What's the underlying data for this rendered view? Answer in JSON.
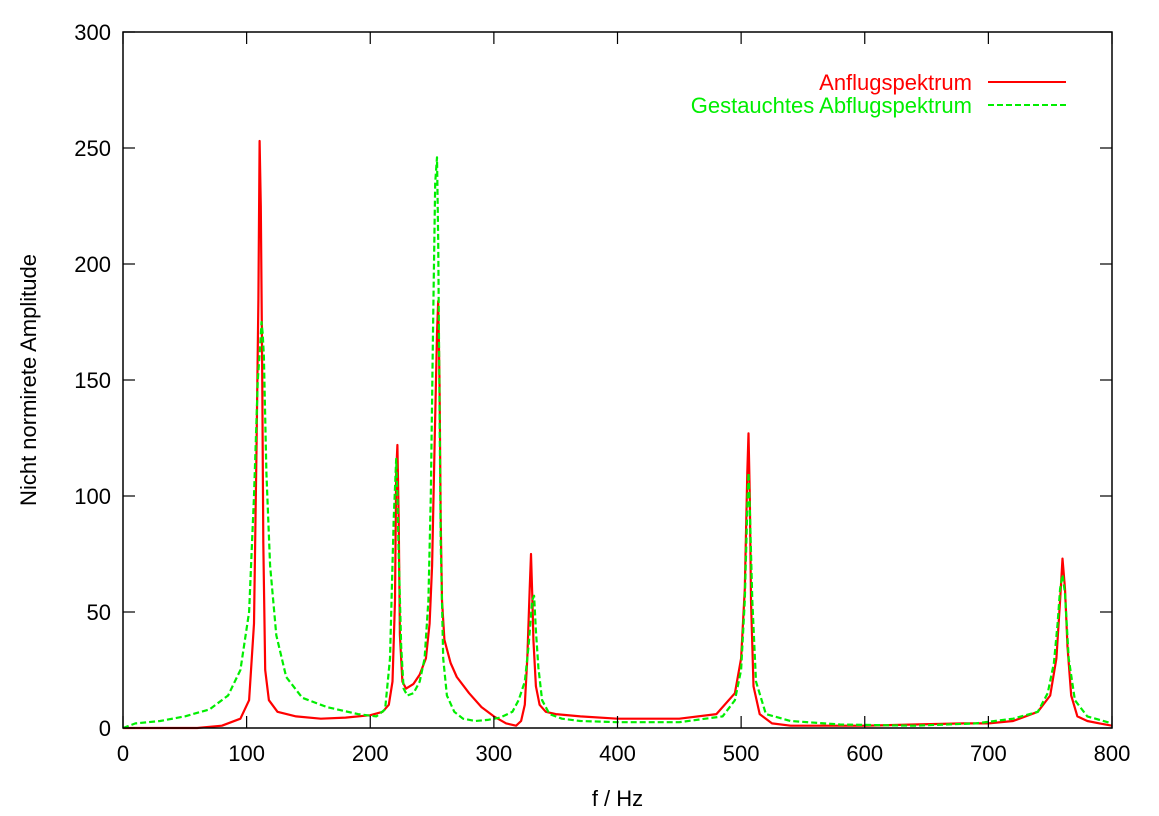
{
  "chart_data": {
    "type": "line",
    "title": "",
    "xlabel": "f / Hz",
    "ylabel": "Nicht normirete Amplitude",
    "xlim": [
      0,
      800
    ],
    "ylim": [
      0,
      300
    ],
    "xticks": [
      0,
      100,
      200,
      300,
      400,
      500,
      600,
      700,
      800
    ],
    "yticks": [
      0,
      50,
      100,
      150,
      200,
      250,
      300
    ],
    "grid": false,
    "legend_position": "top-right",
    "series": [
      {
        "name": "Anflugspektrum",
        "color": "#ff0000",
        "dash": "solid",
        "x": [
          0,
          20,
          40,
          60,
          80,
          95,
          102,
          106,
          108,
          109.5,
          110.5,
          111.5,
          112.5,
          113.5,
          115,
          118,
          125,
          140,
          160,
          180,
          200,
          210,
          215,
          218,
          220,
          221,
          222,
          223,
          224,
          226,
          229,
          235,
          240,
          245,
          248,
          250,
          252,
          254,
          255,
          256,
          257,
          258,
          260,
          265,
          270,
          280,
          290,
          300,
          310,
          318,
          322,
          325,
          327,
          329,
          330,
          331,
          332,
          334,
          337,
          342,
          350,
          370,
          400,
          450,
          480,
          495,
          500,
          503,
          505,
          506,
          507,
          508,
          510,
          515,
          525,
          540,
          560,
          600,
          640,
          680,
          700,
          720,
          740,
          750,
          755,
          758,
          760,
          762,
          764,
          767,
          772,
          780,
          790,
          800
        ],
        "y": [
          0,
          0,
          0,
          0,
          1,
          4,
          12,
          45,
          120,
          185,
          253,
          225,
          160,
          80,
          25,
          12,
          7,
          5,
          4,
          4.5,
          5.5,
          7,
          10,
          20,
          55,
          110,
          122,
          90,
          40,
          20,
          17,
          19,
          23,
          30,
          45,
          70,
          120,
          170,
          184,
          150,
          90,
          55,
          38,
          28,
          22,
          15,
          9,
          5,
          2,
          1,
          3,
          10,
          30,
          60,
          75,
          58,
          38,
          18,
          10,
          7,
          6,
          5,
          4,
          4,
          6,
          15,
          30,
          60,
          110,
          127,
          100,
          55,
          18,
          6,
          2,
          1,
          1,
          1,
          1.5,
          2,
          2,
          3,
          7,
          14,
          30,
          55,
          73,
          60,
          35,
          14,
          5,
          3,
          2,
          1
        ]
      },
      {
        "name": "Gestauchtes Abflugspektrum",
        "color": "#00ee00",
        "dash": "dashed",
        "x": [
          0,
          10,
          30,
          50,
          70,
          85,
          95,
          102,
          106,
          109,
          111,
          112,
          113,
          114,
          116,
          119,
          124,
          132,
          145,
          165,
          190,
          205,
          212,
          216,
          219,
          221,
          222,
          223,
          225,
          227,
          230,
          235,
          240,
          244,
          247,
          249,
          251,
          252.5,
          254,
          255,
          256,
          257,
          259,
          262,
          268,
          275,
          285,
          295,
          305,
          315,
          320,
          325,
          328,
          331,
          332.5,
          334,
          336,
          339,
          345,
          355,
          370,
          400,
          450,
          485,
          495,
          500,
          503,
          505,
          506,
          507,
          509,
          512,
          520,
          540,
          580,
          640,
          690,
          720,
          740,
          748,
          753,
          756,
          758,
          760,
          762,
          765,
          770,
          780,
          800
        ],
        "y": [
          0,
          2,
          3,
          5,
          8,
          14,
          25,
          50,
          100,
          150,
          165,
          175,
          170,
          160,
          110,
          70,
          40,
          22,
          13,
          9,
          6,
          5,
          8,
          30,
          90,
          116,
          100,
          75,
          35,
          17,
          14,
          15,
          20,
          30,
          55,
          100,
          180,
          235,
          246,
          210,
          140,
          80,
          30,
          14,
          7,
          4,
          3,
          3.5,
          4.5,
          7,
          12,
          20,
          35,
          55,
          57,
          42,
          26,
          12,
          6,
          4,
          3,
          2.5,
          2.5,
          5,
          12,
          25,
          55,
          95,
          110,
          95,
          55,
          20,
          6,
          3,
          1.5,
          1,
          2,
          4,
          7,
          15,
          28,
          45,
          60,
          66,
          58,
          30,
          12,
          5,
          2
        ]
      }
    ]
  }
}
